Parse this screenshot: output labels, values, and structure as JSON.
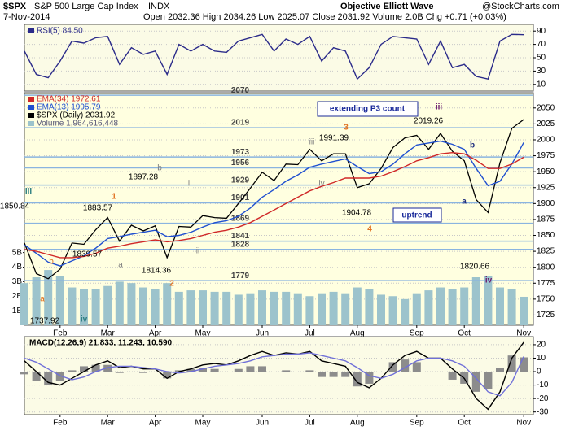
{
  "header": {
    "symbol": "$SPX",
    "name": "S&P 500 Large Cap Index",
    "exchange": "INDX",
    "brand": "Objective Elliott Wave",
    "source": "@StockCharts.com",
    "date": "7-Nov-2014",
    "quote": "Open 2032.36 High 2034.26 Low 2025.07 Close 2031.92 Volume 2.0B Chg +0.71 (+0.03%)"
  },
  "chart_data": [
    {
      "type": "line",
      "ylim": [
        0,
        100
      ],
      "yticks": [
        10,
        30,
        50,
        70,
        90
      ],
      "grid": true,
      "series": [
        {
          "name": "RSI(5) 84.50",
          "color": "#2b2b8a",
          "values": [
            60,
            25,
            20,
            45,
            75,
            72,
            80,
            82,
            40,
            65,
            55,
            60,
            25,
            70,
            60,
            70,
            60,
            58,
            75,
            80,
            85,
            60,
            78,
            70,
            82,
            45,
            65,
            60,
            18,
            35,
            70,
            82,
            80,
            78,
            40,
            75,
            35,
            40,
            22,
            18,
            75,
            85,
            84.5
          ]
        }
      ]
    },
    {
      "type": "line",
      "ylim": [
        1709,
        2074
      ],
      "yticks": [
        1725,
        1750,
        1775,
        1800,
        1825,
        1850,
        1875,
        1900,
        1925,
        1950,
        1975,
        2000,
        2025,
        2050
      ],
      "grid": true,
      "y2lim": [
        0,
        16
      ],
      "y2ticks": [
        {
          "value": 1,
          "label": "1B"
        },
        {
          "value": 2,
          "label": "2B"
        },
        {
          "value": 3,
          "label": "3B"
        },
        {
          "value": 4,
          "label": "4B"
        },
        {
          "value": 5,
          "label": "5B"
        }
      ],
      "levels": [
        2070,
        2019,
        1973,
        1956,
        1929,
        1901,
        1869,
        1841,
        1828,
        1779
      ],
      "categories": [
        null,
        null,
        null,
        "Feb",
        null,
        null,
        null,
        "Mar",
        null,
        null,
        null,
        "Apr",
        null,
        null,
        null,
        "May",
        null,
        null,
        null,
        null,
        "Jun",
        null,
        null,
        null,
        "Jul",
        null,
        null,
        null,
        "Aug",
        null,
        null,
        null,
        null,
        "Sep",
        null,
        null,
        null,
        "Oct",
        null,
        null,
        null,
        null,
        "Nov"
      ],
      "series": [
        {
          "name": "Volume 1,964,616,448",
          "color": "#9cc3cc",
          "axis": "y2",
          "type": "bar",
          "values": [
            2.9,
            3.3,
            3.8,
            3.4,
            2.6,
            2.5,
            2.5,
            2.7,
            3.0,
            2.9,
            2.6,
            2.5,
            2.9,
            2.3,
            2.4,
            2.4,
            2.3,
            2.3,
            2.1,
            2.2,
            2.4,
            2.3,
            2.3,
            2.2,
            2.0,
            2.2,
            2.3,
            2.2,
            2.6,
            2.5,
            2.1,
            2.0,
            1.8,
            2.2,
            2.4,
            2.6,
            2.5,
            2.6,
            3.3,
            3.4,
            2.6,
            2.5,
            1.96
          ]
        },
        {
          "name": "$SPX (Daily) 2031.92",
          "color": "#000000",
          "values": [
            1838,
            1790,
            1782,
            1797,
            1838,
            1836,
            1859,
            1878,
            1841,
            1866,
            1857,
            1865,
            1815,
            1864,
            1863,
            1881,
            1878,
            1877,
            1900,
            1924,
            1949,
            1936,
            1962,
            1961,
            1985,
            1967,
            1978,
            1978,
            1925,
            1931,
            1955,
            1988,
            2003,
            2007,
            1985,
            2010,
            1982,
            1967,
            1906,
            1886,
            1964,
            2018,
            2031.92
          ]
        },
        {
          "name": "EMA(13) 1995.79",
          "color": "#2050d0",
          "values": [
            1835,
            1822,
            1808,
            1802,
            1810,
            1818,
            1830,
            1845,
            1848,
            1852,
            1855,
            1858,
            1848,
            1850,
            1855,
            1863,
            1870,
            1873,
            1880,
            1893,
            1910,
            1922,
            1935,
            1945,
            1957,
            1962,
            1966,
            1970,
            1958,
            1947,
            1950,
            1962,
            1978,
            1992,
            1995,
            1998,
            1993,
            1985,
            1955,
            1928,
            1935,
            1962,
            1995.79
          ]
        },
        {
          "name": "EMA(34) 1972.61",
          "color": "#d02828",
          "values": [
            1828,
            1825,
            1820,
            1815,
            1815,
            1817,
            1822,
            1830,
            1833,
            1837,
            1840,
            1843,
            1840,
            1842,
            1845,
            1850,
            1855,
            1858,
            1863,
            1870,
            1880,
            1890,
            1900,
            1910,
            1920,
            1927,
            1933,
            1940,
            1940,
            1940,
            1943,
            1950,
            1958,
            1967,
            1972,
            1978,
            1980,
            1978,
            1968,
            1955,
            1955,
            1962,
            1972.61
          ]
        }
      ],
      "annotations": [
        "iii",
        "1850.84",
        "a",
        "b",
        "1737.92",
        "iv",
        "1",
        "1883.57",
        "1839.57",
        "a",
        "1897.28",
        "b",
        "1814.36",
        "2",
        "i",
        "ii",
        "3",
        "iii",
        "1991.39",
        "iv",
        "1904.78",
        "4",
        "iii",
        "2019.26",
        "b",
        "a",
        "1820.66",
        "iv",
        "extending P3 count",
        "uptrend"
      ]
    },
    {
      "type": "line",
      "ylim": [
        -32,
        26
      ],
      "yticks": [
        -30,
        -20,
        -10,
        0,
        10,
        20
      ],
      "grid": true,
      "legend": "MACD(12,26,9) 21.833, 11.243, 10.590",
      "categories": [
        null,
        null,
        null,
        "Feb",
        null,
        null,
        null,
        "Mar",
        null,
        null,
        null,
        "Apr",
        null,
        null,
        null,
        "May",
        null,
        null,
        null,
        null,
        "Jun",
        null,
        null,
        null,
        "Jul",
        null,
        null,
        null,
        "Aug",
        null,
        null,
        null,
        null,
        "Sep",
        null,
        null,
        null,
        "Oct",
        null,
        null,
        null,
        null,
        "Nov"
      ],
      "series": [
        {
          "color": "#8c8c8c",
          "type": "bar",
          "values": [
            -2,
            -7,
            -10,
            -7,
            1,
            4,
            5,
            5,
            -1,
            0,
            -1,
            0,
            -5,
            1,
            2,
            3,
            2,
            0,
            2,
            4,
            4,
            0,
            1,
            0,
            1,
            -4,
            -4,
            -4,
            -11,
            -9,
            0,
            7,
            9,
            7,
            0,
            0,
            -6,
            -9,
            -15,
            -13,
            3,
            12,
            10.59
          ]
        },
        {
          "color": "#000000",
          "values": [
            8,
            0,
            -8,
            -10,
            -5,
            0,
            5,
            8,
            3,
            4,
            2,
            2,
            -5,
            0,
            2,
            5,
            6,
            5,
            8,
            12,
            15,
            12,
            14,
            13,
            15,
            8,
            6,
            4,
            -8,
            -12,
            -5,
            5,
            12,
            15,
            10,
            10,
            2,
            -5,
            -20,
            -28,
            -15,
            10,
            21.833
          ]
        },
        {
          "color": "#6f6fd8",
          "values": [
            10,
            7,
            2,
            -3,
            -6,
            -4,
            0,
            3,
            4,
            4,
            3,
            2,
            0,
            -1,
            0,
            2,
            4,
            5,
            6,
            8,
            11,
            12,
            13,
            13,
            14,
            12,
            10,
            8,
            3,
            -3,
            -5,
            -2,
            3,
            8,
            10,
            10,
            8,
            4,
            -5,
            -15,
            -18,
            -8,
            11.243
          ]
        }
      ]
    }
  ]
}
